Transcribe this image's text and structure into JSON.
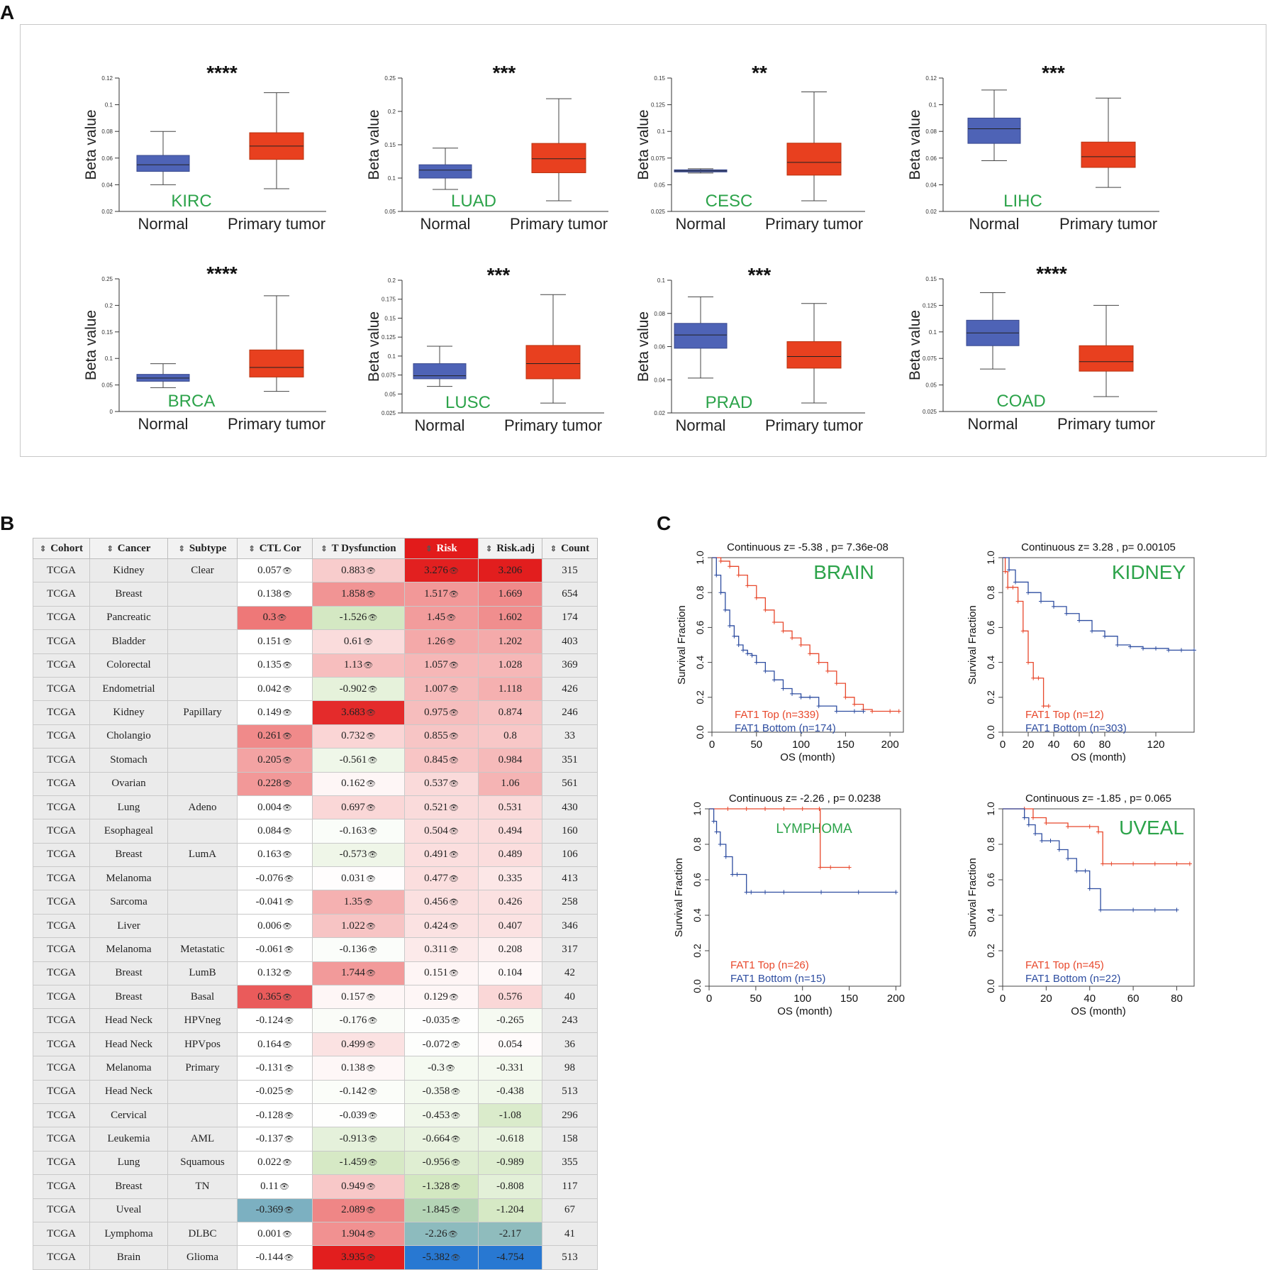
{
  "panels": {
    "a": "A",
    "b": "B",
    "c": "C"
  },
  "chart_data": [
    {
      "type": "box",
      "cancer": "KIRC",
      "significance": "****",
      "ylabel": "Beta value",
      "ylim": [
        0.02,
        0.12
      ],
      "yticks": [
        "0.12",
        "0.1",
        "0.08",
        "0.06",
        "0.04",
        "0.02"
      ],
      "ytick_values": [
        0.12,
        0.1,
        0.08,
        0.06,
        0.04,
        0.02
      ],
      "categories": [
        "Normal",
        "Primary tumor"
      ],
      "boxes": [
        {
          "min": 0.04,
          "q1": 0.05,
          "median": 0.055,
          "q3": 0.062,
          "max": 0.08
        },
        {
          "min": 0.037,
          "q1": 0.059,
          "median": 0.069,
          "q3": 0.079,
          "max": 0.109
        }
      ]
    },
    {
      "type": "box",
      "cancer": "LUAD",
      "significance": "***",
      "ylabel": "Beta value",
      "ylim": [
        0.05,
        0.25
      ],
      "yticks": [
        "0.25",
        "0.2",
        "0.15",
        "0.1",
        "0.05"
      ],
      "ytick_values": [
        0.25,
        0.2,
        0.15,
        0.1,
        0.05
      ],
      "categories": [
        "Normal",
        "Primary tumor"
      ],
      "boxes": [
        {
          "min": 0.083,
          "q1": 0.1,
          "median": 0.112,
          "q3": 0.12,
          "max": 0.145
        },
        {
          "min": 0.066,
          "q1": 0.108,
          "median": 0.129,
          "q3": 0.152,
          "max": 0.219
        }
      ]
    },
    {
      "type": "box",
      "cancer": "CESC",
      "significance": "**",
      "ylabel": "Beta value",
      "ylim": [
        0.025,
        0.15
      ],
      "yticks": [
        "0.15",
        "0.125",
        "0.1",
        "0.075",
        "0.05",
        "0.025"
      ],
      "ytick_values": [
        0.15,
        0.125,
        0.1,
        0.075,
        0.05,
        0.025
      ],
      "categories": [
        "Normal",
        "Primary tumor"
      ],
      "boxes": [
        {
          "min": 0.061,
          "q1": 0.062,
          "median": 0.063,
          "q3": 0.064,
          "max": 0.065
        },
        {
          "min": 0.035,
          "q1": 0.059,
          "median": 0.071,
          "q3": 0.089,
          "max": 0.137
        }
      ]
    },
    {
      "type": "box",
      "cancer": "LIHC",
      "significance": "***",
      "ylabel": "Beta value",
      "ylim": [
        0.02,
        0.12
      ],
      "yticks": [
        "0.12",
        "0.1",
        "0.08",
        "0.06",
        "0.04",
        "0.02"
      ],
      "ytick_values": [
        0.12,
        0.1,
        0.08,
        0.06,
        0.04,
        0.02
      ],
      "categories": [
        "Normal",
        "Primary tumor"
      ],
      "boxes": [
        {
          "min": 0.058,
          "q1": 0.071,
          "median": 0.082,
          "q3": 0.09,
          "max": 0.111
        },
        {
          "min": 0.038,
          "q1": 0.053,
          "median": 0.061,
          "q3": 0.072,
          "max": 0.105
        }
      ]
    },
    {
      "type": "box",
      "cancer": "BRCA",
      "significance": "****",
      "ylabel": "Beta value",
      "ylim": [
        0,
        0.25
      ],
      "yticks": [
        "0.25",
        "0.2",
        "0.15",
        "0.1",
        "0.05",
        "0"
      ],
      "ytick_values": [
        0.25,
        0.2,
        0.15,
        0.1,
        0.05,
        0
      ],
      "categories": [
        "Normal",
        "Primary tumor"
      ],
      "boxes": [
        {
          "min": 0.045,
          "q1": 0.057,
          "median": 0.063,
          "q3": 0.07,
          "max": 0.09
        },
        {
          "min": 0.038,
          "q1": 0.065,
          "median": 0.083,
          "q3": 0.116,
          "max": 0.218
        }
      ]
    },
    {
      "type": "box",
      "cancer": "LUSC",
      "significance": "***",
      "ylabel": "Beta value",
      "ylim": [
        0.025,
        0.2
      ],
      "yticks": [
        "0.2",
        "0.175",
        "0.15",
        "0.125",
        "0.1",
        "0.075",
        "0.05",
        "0.025"
      ],
      "ytick_values": [
        0.2,
        0.175,
        0.15,
        0.125,
        0.1,
        0.075,
        0.05,
        0.025
      ],
      "categories": [
        "Normal",
        "Primary tumor"
      ],
      "boxes": [
        {
          "min": 0.06,
          "q1": 0.07,
          "median": 0.074,
          "q3": 0.09,
          "max": 0.113
        },
        {
          "min": 0.038,
          "q1": 0.07,
          "median": 0.09,
          "q3": 0.114,
          "max": 0.181
        }
      ]
    },
    {
      "type": "box",
      "cancer": "PRAD",
      "significance": "***",
      "ylabel": "Beta value",
      "ylim": [
        0.02,
        0.1
      ],
      "yticks": [
        "0.1",
        "0.08",
        "0.06",
        "0.04",
        "0.02"
      ],
      "ytick_values": [
        0.1,
        0.08,
        0.06,
        0.04,
        0.02
      ],
      "categories": [
        "Normal",
        "Primary tumor"
      ],
      "boxes": [
        {
          "min": 0.041,
          "q1": 0.059,
          "median": 0.067,
          "q3": 0.074,
          "max": 0.09
        },
        {
          "min": 0.026,
          "q1": 0.047,
          "median": 0.054,
          "q3": 0.063,
          "max": 0.086
        }
      ]
    },
    {
      "type": "box",
      "cancer": "COAD",
      "significance": "****",
      "ylabel": "Beta value",
      "ylim": [
        0.025,
        0.15
      ],
      "yticks": [
        "0.15",
        "0.125",
        "0.1",
        "0.075",
        "0.05",
        "0.025"
      ],
      "ytick_values": [
        0.15,
        0.125,
        0.1,
        0.075,
        0.05,
        0.025
      ],
      "categories": [
        "Normal",
        "Primary tumor"
      ],
      "boxes": [
        {
          "min": 0.065,
          "q1": 0.087,
          "median": 0.099,
          "q3": 0.111,
          "max": 0.137
        },
        {
          "min": 0.039,
          "q1": 0.063,
          "median": 0.072,
          "q3": 0.087,
          "max": 0.125
        }
      ]
    },
    {
      "type": "line",
      "kind": "kaplan-meier",
      "name": "BRAIN",
      "title": "Continuous z= -5.38 , p= 7.36e-08",
      "xlabel": "OS (month)",
      "ylabel": "Survival Fraction",
      "xlim": [
        0,
        215
      ],
      "ylim": [
        0,
        1
      ],
      "xticks": [
        0,
        50,
        100,
        150,
        200
      ],
      "yticks": [
        "0.0",
        "0.2",
        "0.4",
        "0.6",
        "0.8",
        "1.0"
      ],
      "legend": [
        "FAT1 Top (n=339)",
        "FAT1 Bottom (n=174)"
      ],
      "series": [
        {
          "name": "FAT1 Top (n=339)",
          "color": "#e8482c",
          "x": [
            0,
            10,
            20,
            30,
            40,
            50,
            60,
            70,
            80,
            90,
            100,
            110,
            120,
            130,
            140,
            150,
            160,
            170,
            180,
            200,
            210
          ],
          "y": [
            1,
            0.98,
            0.95,
            0.9,
            0.84,
            0.77,
            0.7,
            0.63,
            0.58,
            0.54,
            0.5,
            0.45,
            0.4,
            0.35,
            0.28,
            0.2,
            0.16,
            0.13,
            0.12,
            0.12,
            0.12
          ]
        },
        {
          "name": "FAT1 Bottom (n=174)",
          "color": "#2e4da0",
          "x": [
            0,
            5,
            10,
            15,
            20,
            25,
            30,
            35,
            40,
            45,
            50,
            60,
            70,
            80,
            90,
            100,
            110,
            120,
            140,
            160,
            170
          ],
          "y": [
            1,
            0.9,
            0.8,
            0.7,
            0.61,
            0.55,
            0.5,
            0.47,
            0.45,
            0.44,
            0.4,
            0.35,
            0.3,
            0.25,
            0.22,
            0.2,
            0.2,
            0.15,
            0.12,
            0.12,
            0.12
          ]
        }
      ]
    },
    {
      "type": "line",
      "kind": "kaplan-meier",
      "name": "KIDNEY",
      "title": "Continuous z= 3.28 , p= 0.00105",
      "xlabel": "OS (month)",
      "ylabel": "Survival Fraction",
      "xlim": [
        0,
        150
      ],
      "ylim": [
        0,
        1
      ],
      "xticks": [
        0,
        20,
        40,
        60,
        80,
        120
      ],
      "yticks": [
        "0.0",
        "0.2",
        "0.4",
        "0.6",
        "0.8",
        "1.0"
      ],
      "legend": [
        "FAT1 Top (n=12)",
        "FAT1 Bottom (n=303)"
      ],
      "series": [
        {
          "name": "FAT1 Top (n=12)",
          "color": "#e8482c",
          "x": [
            0,
            2,
            4,
            8,
            12,
            16,
            20,
            24,
            28,
            32,
            36
          ],
          "y": [
            1,
            0.92,
            0.83,
            0.83,
            0.75,
            0.58,
            0.4,
            0.31,
            0.31,
            0.15,
            0.15
          ]
        },
        {
          "name": "FAT1 Bottom (n=303)",
          "color": "#2e4da0",
          "x": [
            0,
            5,
            10,
            20,
            30,
            40,
            50,
            60,
            70,
            80,
            90,
            100,
            110,
            120,
            130,
            140,
            150
          ],
          "y": [
            1,
            0.93,
            0.86,
            0.8,
            0.75,
            0.72,
            0.68,
            0.64,
            0.58,
            0.55,
            0.5,
            0.49,
            0.48,
            0.48,
            0.47,
            0.47,
            0.47
          ]
        }
      ]
    },
    {
      "type": "line",
      "kind": "kaplan-meier",
      "name": "LYMPHOMA",
      "title": "Continuous z= -2.26 , p= 0.0238",
      "xlabel": "OS (month)",
      "ylabel": "Survival Fraction",
      "xlim": [
        0,
        205
      ],
      "ylim": [
        0,
        1
      ],
      "xticks": [
        0,
        50,
        100,
        150,
        200
      ],
      "yticks": [
        "0.0",
        "0.2",
        "0.4",
        "0.6",
        "0.8",
        "1.0"
      ],
      "legend": [
        "FAT1 Top (n=26)",
        "FAT1 Bottom (n=15)"
      ],
      "series": [
        {
          "name": "FAT1 Top (n=26)",
          "color": "#e8482c",
          "x": [
            0,
            20,
            40,
            60,
            80,
            100,
            118,
            119,
            130,
            150
          ],
          "y": [
            1,
            1,
            1,
            1,
            1,
            1,
            1,
            0.67,
            0.67,
            0.67
          ]
        },
        {
          "name": "FAT1 Bottom (n=15)",
          "color": "#2e4da0",
          "x": [
            0,
            5,
            8,
            12,
            18,
            25,
            30,
            40,
            45,
            60,
            80,
            120,
            160,
            200
          ],
          "y": [
            1,
            0.93,
            0.87,
            0.8,
            0.73,
            0.63,
            0.63,
            0.53,
            0.53,
            0.53,
            0.53,
            0.53,
            0.53,
            0.53
          ]
        }
      ]
    },
    {
      "type": "line",
      "kind": "kaplan-meier",
      "name": "UVEAL",
      "title": "Continuous z= -1.85 , p= 0.065",
      "xlabel": "OS (month)",
      "ylabel": "Survival Fraction",
      "xlim": [
        0,
        88
      ],
      "ylim": [
        0,
        1
      ],
      "xticks": [
        0,
        20,
        40,
        60,
        80
      ],
      "yticks": [
        "0.0",
        "0.2",
        "0.4",
        "0.6",
        "0.8",
        "1.0"
      ],
      "legend": [
        "FAT1 Top (n=45)",
        "FAT1 Bottom (n=22)"
      ],
      "series": [
        {
          "name": "FAT1 Top (n=45)",
          "color": "#e8482c",
          "x": [
            0,
            10,
            14,
            20,
            30,
            40,
            44,
            46,
            50,
            60,
            70,
            80,
            86
          ],
          "y": [
            1,
            1,
            0.95,
            0.92,
            0.9,
            0.9,
            0.87,
            0.69,
            0.69,
            0.69,
            0.69,
            0.69,
            0.69
          ]
        },
        {
          "name": "FAT1 Bottom (n=22)",
          "color": "#2e4da0",
          "x": [
            0,
            10,
            12,
            15,
            18,
            22,
            26,
            30,
            34,
            38,
            40,
            45,
            60,
            70,
            80
          ],
          "y": [
            1,
            0.95,
            0.91,
            0.86,
            0.82,
            0.82,
            0.77,
            0.72,
            0.65,
            0.65,
            0.55,
            0.43,
            0.43,
            0.43,
            0.43
          ]
        }
      ]
    }
  ],
  "table": {
    "headers": [
      "Cohort",
      "Cancer",
      "Subtype",
      "CTL Cor",
      "T Dysfunction",
      "Risk",
      "Risk.adj",
      "Count"
    ],
    "sort_glyph": "⇕",
    "eye_glyph": "👁",
    "rows": [
      [
        "TCGA",
        "Kidney",
        "Clear",
        "0.057",
        "0.883",
        "3.276",
        "3.206",
        "315"
      ],
      [
        "TCGA",
        "Breast",
        "",
        "0.138",
        "1.858",
        "1.517",
        "1.669",
        "654"
      ],
      [
        "TCGA",
        "Pancreatic",
        "",
        "0.3",
        "-1.526",
        "1.45",
        "1.602",
        "174"
      ],
      [
        "TCGA",
        "Bladder",
        "",
        "0.151",
        "0.61",
        "1.26",
        "1.202",
        "403"
      ],
      [
        "TCGA",
        "Colorectal",
        "",
        "0.135",
        "1.13",
        "1.057",
        "1.028",
        "369"
      ],
      [
        "TCGA",
        "Endometrial",
        "",
        "0.042",
        "-0.902",
        "1.007",
        "1.118",
        "426"
      ],
      [
        "TCGA",
        "Kidney",
        "Papillary",
        "0.149",
        "3.683",
        "0.975",
        "0.874",
        "246"
      ],
      [
        "TCGA",
        "Cholangio",
        "",
        "0.261",
        "0.732",
        "0.855",
        "0.8",
        "33"
      ],
      [
        "TCGA",
        "Stomach",
        "",
        "0.205",
        "-0.561",
        "0.845",
        "0.984",
        "351"
      ],
      [
        "TCGA",
        "Ovarian",
        "",
        "0.228",
        "0.162",
        "0.537",
        "1.06",
        "561"
      ],
      [
        "TCGA",
        "Lung",
        "Adeno",
        "0.004",
        "0.697",
        "0.521",
        "0.531",
        "430"
      ],
      [
        "TCGA",
        "Esophageal",
        "",
        "0.084",
        "-0.163",
        "0.504",
        "0.494",
        "160"
      ],
      [
        "TCGA",
        "Breast",
        "LumA",
        "0.163",
        "-0.573",
        "0.491",
        "0.489",
        "106"
      ],
      [
        "TCGA",
        "Melanoma",
        "",
        "-0.076",
        "0.031",
        "0.477",
        "0.335",
        "413"
      ],
      [
        "TCGA",
        "Sarcoma",
        "",
        "-0.041",
        "1.35",
        "0.456",
        "0.426",
        "258"
      ],
      [
        "TCGA",
        "Liver",
        "",
        "0.006",
        "1.022",
        "0.424",
        "0.407",
        "346"
      ],
      [
        "TCGA",
        "Melanoma",
        "Metastatic",
        "-0.061",
        "-0.136",
        "0.311",
        "0.208",
        "317"
      ],
      [
        "TCGA",
        "Breast",
        "LumB",
        "0.132",
        "1.744",
        "0.151",
        "0.104",
        "42"
      ],
      [
        "TCGA",
        "Breast",
        "Basal",
        "0.365",
        "0.157",
        "0.129",
        "0.576",
        "40"
      ],
      [
        "TCGA",
        "Head Neck",
        "HPVneg",
        "-0.124",
        "-0.176",
        "-0.035",
        "-0.265",
        "243"
      ],
      [
        "TCGA",
        "Head Neck",
        "HPVpos",
        "0.164",
        "0.499",
        "-0.072",
        "0.054",
        "36"
      ],
      [
        "TCGA",
        "Melanoma",
        "Primary",
        "-0.131",
        "0.138",
        "-0.3",
        "-0.331",
        "98"
      ],
      [
        "TCGA",
        "Head Neck",
        "",
        "-0.025",
        "-0.142",
        "-0.358",
        "-0.438",
        "513"
      ],
      [
        "TCGA",
        "Cervical",
        "",
        "-0.128",
        "-0.039",
        "-0.453",
        "-1.08",
        "296"
      ],
      [
        "TCGA",
        "Leukemia",
        "AML",
        "-0.137",
        "-0.913",
        "-0.664",
        "-0.618",
        "158"
      ],
      [
        "TCGA",
        "Lung",
        "Squamous",
        "0.022",
        "-1.459",
        "-0.956",
        "-0.989",
        "355"
      ],
      [
        "TCGA",
        "Breast",
        "TN",
        "0.11",
        "0.949",
        "-1.328",
        "-0.808",
        "117"
      ],
      [
        "TCGA",
        "Uveal",
        "",
        "-0.369",
        "2.089",
        "-1.845",
        "-1.204",
        "67"
      ],
      [
        "TCGA",
        "Lymphoma",
        "DLBC",
        "0.001",
        "1.904",
        "-2.26",
        "-2.17",
        "41"
      ],
      [
        "TCGA",
        "Brain",
        "Glioma",
        "-0.144",
        "3.935",
        "-5.382",
        "-4.754",
        "513"
      ]
    ]
  }
}
